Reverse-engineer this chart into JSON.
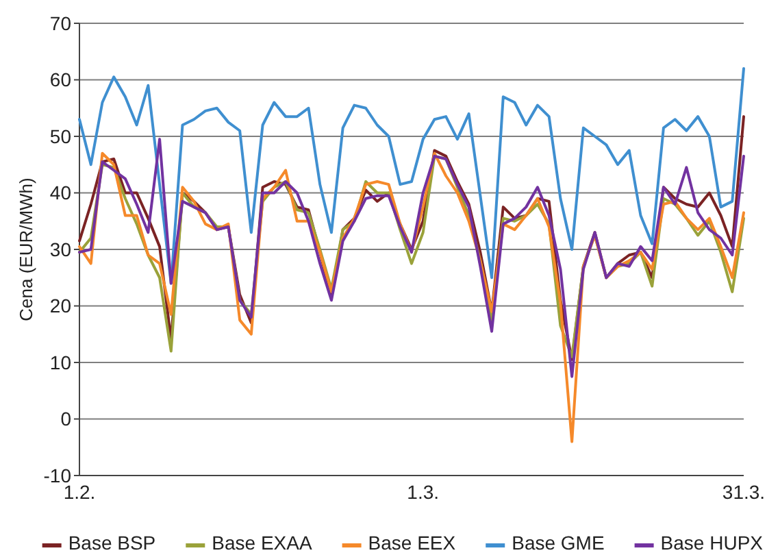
{
  "chart_data": {
    "type": "line",
    "ylabel": "Cena (EUR/MWh)",
    "categories": [
      "1.2.",
      null,
      null,
      null,
      null,
      null,
      null,
      null,
      null,
      null,
      null,
      null,
      null,
      null,
      null,
      null,
      null,
      null,
      null,
      null,
      null,
      null,
      null,
      null,
      null,
      null,
      null,
      null,
      null,
      null,
      "1.3.",
      null,
      null,
      null,
      null,
      null,
      null,
      null,
      null,
      null,
      null,
      null,
      null,
      null,
      null,
      null,
      null,
      null,
      null,
      null,
      null,
      null,
      null,
      null,
      null,
      null,
      null,
      null,
      "31.3."
    ],
    "series": [
      {
        "name": "Base BSP",
        "color": "#7b2324",
        "values": [
          31.5,
          38,
          45.5,
          46,
          40,
          40,
          35.5,
          30.5,
          14,
          40,
          38.5,
          36.5,
          33.5,
          34,
          22,
          17,
          41,
          42,
          41.5,
          37.5,
          37,
          29.5,
          21.5,
          33.5,
          35.5,
          40.5,
          38.5,
          40,
          34.5,
          30,
          35,
          47.5,
          46.5,
          42,
          38,
          29.5,
          19,
          37.5,
          35.5,
          36,
          39,
          38.5,
          21,
          10.5,
          27,
          33,
          25,
          27.5,
          29,
          29.5,
          25,
          41,
          39,
          38,
          37.5,
          40,
          36,
          30.5,
          53.5
        ]
      },
      {
        "name": "Base EXAA",
        "color": "#9aa23a",
        "values": [
          29.5,
          32,
          45,
          44.5,
          39,
          34.5,
          29,
          25,
          12,
          40,
          37.5,
          36.5,
          34,
          34,
          21,
          18.5,
          38.5,
          41,
          42,
          37,
          36.5,
          30,
          23,
          33.5,
          35,
          42,
          40,
          40,
          33.5,
          27.5,
          33,
          46.5,
          46,
          41,
          36,
          28,
          17.5,
          35.5,
          35,
          36,
          38,
          34.5,
          16.5,
          11,
          27,
          32.5,
          25,
          27,
          27.5,
          29.5,
          23.5,
          39,
          38,
          35.5,
          32.5,
          35,
          29.5,
          22.5,
          35.5
        ]
      },
      {
        "name": "Base EEX",
        "color": "#f5892a",
        "values": [
          30.5,
          27.5,
          47,
          45,
          36,
          36,
          29,
          27.5,
          18.5,
          41,
          38.5,
          34.5,
          33.5,
          34.5,
          17.5,
          15,
          39,
          41,
          44,
          35,
          35,
          29.5,
          22.5,
          32,
          35.5,
          41.5,
          42,
          41.5,
          34.5,
          29.5,
          37.5,
          47,
          43,
          40,
          35,
          28,
          19,
          34.5,
          33.5,
          36,
          39,
          34,
          20.5,
          -4,
          27,
          32.5,
          25,
          27,
          28,
          29.5,
          26.5,
          38,
          38.5,
          35.5,
          33.5,
          35.5,
          30.5,
          25,
          36.5
        ]
      },
      {
        "name": "Base GME",
        "color": "#3f8fd0",
        "values": [
          53,
          45,
          56,
          60.5,
          57,
          52,
          59,
          41.5,
          24,
          52,
          53,
          54.5,
          55,
          52.5,
          51,
          33,
          52,
          56,
          53.5,
          53.5,
          55,
          41.5,
          33,
          51.5,
          55.5,
          55,
          52,
          50,
          41.5,
          42,
          49.5,
          53,
          53.5,
          49.5,
          54,
          39.5,
          25,
          57,
          56,
          52,
          55.5,
          53.5,
          39,
          30,
          51.5,
          50,
          48.5,
          45,
          47.5,
          36,
          31,
          51.5,
          53,
          51,
          53.5,
          50,
          37.5,
          38.5,
          62
        ]
      },
      {
        "name": "Base HUPX",
        "color": "#7232a0",
        "values": [
          29.5,
          30,
          45.5,
          44,
          42.5,
          38,
          33,
          49.5,
          24,
          38.5,
          37.5,
          36.5,
          33.5,
          34,
          21,
          18,
          40,
          40,
          42,
          40,
          35,
          27.5,
          21,
          31.5,
          35,
          39,
          39.5,
          39.5,
          34,
          29.5,
          40,
          46.5,
          46,
          41.5,
          37.5,
          27,
          15.5,
          34.5,
          35.5,
          37.5,
          41,
          36,
          26.5,
          7.5,
          26.5,
          33,
          25,
          27.5,
          27,
          30.5,
          28,
          41,
          38,
          44.5,
          36.5,
          33.5,
          32,
          29,
          46.5
        ]
      }
    ],
    "ylim": [
      -10,
      70
    ],
    "yticks": [
      -10,
      0,
      10,
      20,
      30,
      40,
      50,
      60,
      70
    ],
    "grid": "y",
    "legend": "bottom"
  }
}
